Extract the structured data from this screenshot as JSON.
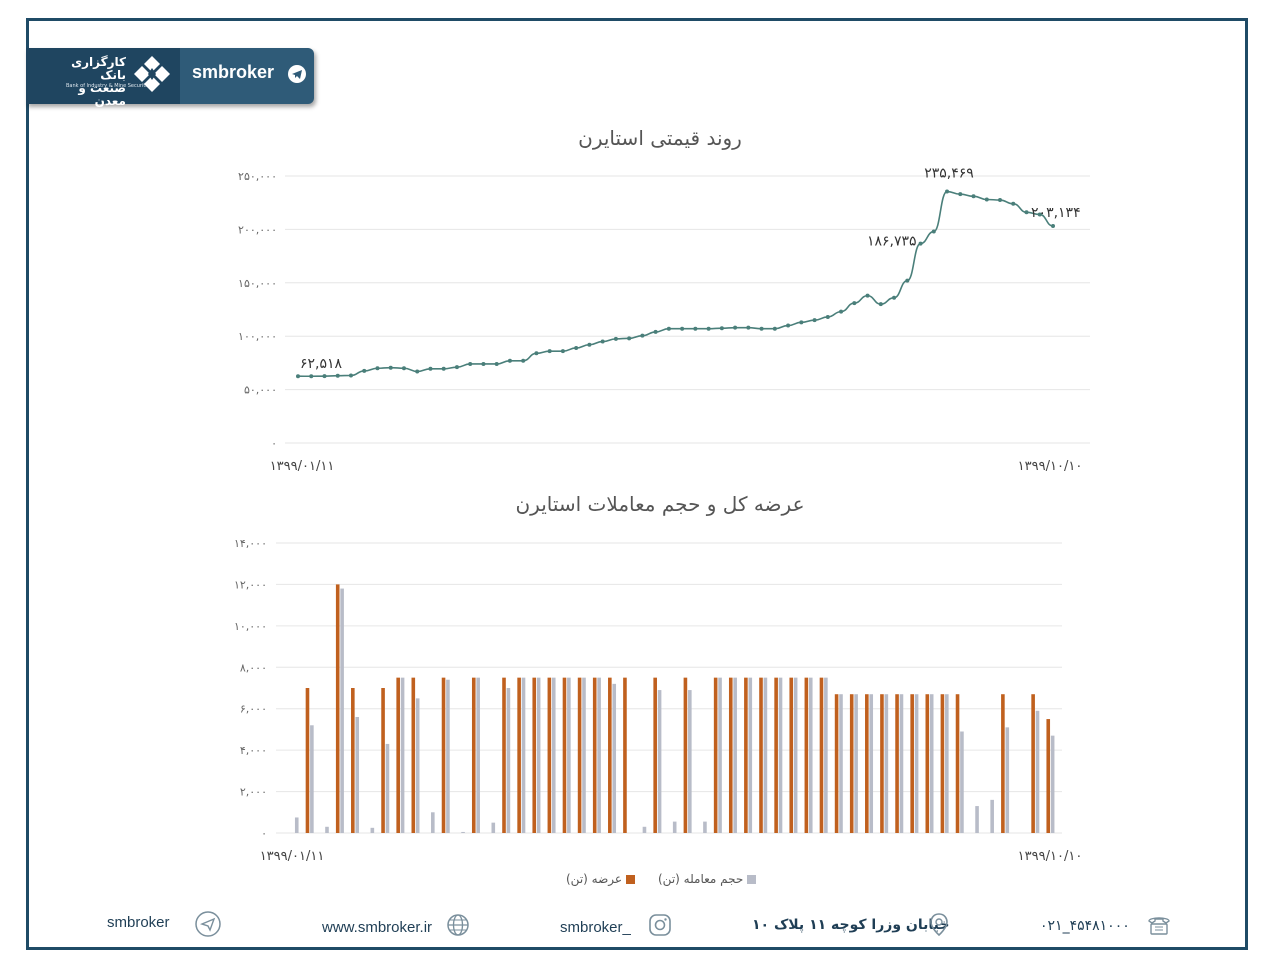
{
  "brand": {
    "name": "smbroker",
    "bank_name_fa": "کارگزاری بانک صنعت و معدن",
    "bank_name_en": "Bank of Industry & Mine Securities"
  },
  "colors": {
    "frame": "#1f4b66",
    "line": "#4a7f7a",
    "supply": "#c0601e",
    "volume": "#b8bcc8"
  },
  "chart_data": [
    {
      "type": "line",
      "title": "روند قیمتی استایرن",
      "ylim": [
        0,
        250000
      ],
      "yticks": [
        "٠",
        "۵٠,٠٠٠",
        "۱٠٠,٠٠٠",
        "۱۵٠,٠٠٠",
        "۲٠٠,٠٠٠",
        "۲۵٠,٠٠٠"
      ],
      "x_start_label": "۱۳۹۹/٠۱/۱۱",
      "x_end_label": "۱۳۹۹/۱٠/۱٠",
      "grid": true,
      "values": [
        62518,
        62500,
        62600,
        63000,
        63200,
        67500,
        70000,
        70500,
        70000,
        67000,
        69500,
        69500,
        71000,
        74000,
        74000,
        74000,
        77000,
        77000,
        84000,
        86000,
        86000,
        89000,
        92000,
        95000,
        97500,
        98000,
        100500,
        104000,
        107000,
        107000,
        107000,
        107000,
        107500,
        108000,
        108000,
        107000,
        107000,
        110000,
        113000,
        115000,
        118000,
        123000,
        131000,
        138000,
        130000,
        136000,
        152000,
        186735,
        198000,
        235469,
        233000,
        231000,
        228000,
        227500,
        224000,
        216000,
        214000,
        203134
      ],
      "point_labels": [
        {
          "index": 0,
          "text": "۶۲,۵۱۸"
        },
        {
          "index": 47,
          "text": "۱۸۶,۷۳۵"
        },
        {
          "index": 49,
          "text": "۲۳۵,۴۶۹"
        },
        {
          "index": 57,
          "text": "۲٠۳,۱۳۴"
        }
      ]
    },
    {
      "type": "bar",
      "title": "عرضه کل و حجم معاملات استایرن",
      "ylim": [
        0,
        14000
      ],
      "yticks": [
        "٠",
        "۲,٠٠٠",
        "۴,٠٠٠",
        "۶,٠٠٠",
        "۸,٠٠٠",
        "۱٠,٠٠٠",
        "۱۲,٠٠٠",
        "۱۴,٠٠٠"
      ],
      "x_start_label": "۱۳۹۹/٠۱/۱۱",
      "x_end_label": "۱۳۹۹/۱٠/۱٠",
      "grid": true,
      "legend_placement": "bottom",
      "series": [
        {
          "name": "عرضه (تن)",
          "values": [
            0,
            7000,
            0,
            12000,
            7000,
            0,
            7000,
            7500,
            7500,
            0,
            7500,
            0,
            7500,
            0,
            7500,
            7500,
            7500,
            7500,
            7500,
            7500,
            7500,
            7500,
            7500,
            0,
            7500,
            0,
            7500,
            0,
            7500,
            7500,
            7500,
            7500,
            7500,
            7500,
            7500,
            7500,
            6700,
            6700,
            6700,
            6700,
            6700,
            6700,
            6700,
            6700,
            6700,
            0,
            0,
            6700,
            0,
            6700,
            5500
          ]
        },
        {
          "name": "حجم معامله (تن)",
          "values": [
            750,
            5200,
            300,
            11800,
            5600,
            250,
            4300,
            7500,
            6500,
            1000,
            7400,
            50,
            7500,
            500,
            7000,
            7500,
            7500,
            7500,
            7500,
            7500,
            7500,
            7200,
            0,
            300,
            6900,
            550,
            6900,
            550,
            7500,
            7500,
            7500,
            7500,
            7500,
            7500,
            7500,
            7500,
            6700,
            6700,
            6700,
            6700,
            6700,
            6700,
            6700,
            6700,
            4900,
            1300,
            1600,
            5100,
            0,
            5900,
            4700
          ]
        }
      ]
    }
  ],
  "footer": {
    "social_name": "smbroker",
    "website": "www.smbroker.ir",
    "instagram": "smbroker_",
    "address": "خیابان وزرا کوچه ۱۱ پلاک ۱٠",
    "phone": "٠۲۱_۴۵۴۸۱٠٠٠"
  }
}
